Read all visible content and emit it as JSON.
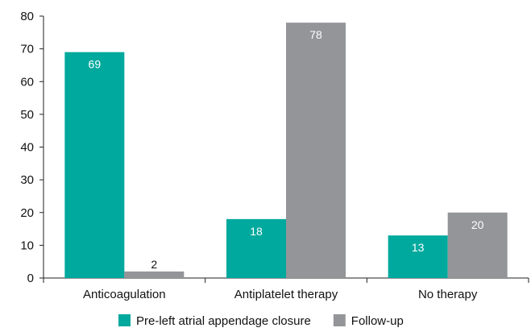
{
  "chart_data": {
    "type": "bar",
    "categories": [
      "Anticoagulation",
      "Antiplatelet therapy",
      "No therapy"
    ],
    "series": [
      {
        "name": "Pre-left atrial appendage closure",
        "values": [
          69,
          18,
          13
        ],
        "color": "#00a99d"
      },
      {
        "name": "Follow-up",
        "values": [
          2,
          78,
          20
        ],
        "color": "#939598"
      }
    ],
    "ylim": [
      0,
      80
    ],
    "yticks": [
      0,
      10,
      20,
      30,
      40,
      50,
      60,
      70,
      80
    ],
    "data_label_colors": [
      "#ffffff",
      "#ffffff",
      "#ffffff"
    ],
    "grid": false,
    "legend_position": "bottom"
  }
}
